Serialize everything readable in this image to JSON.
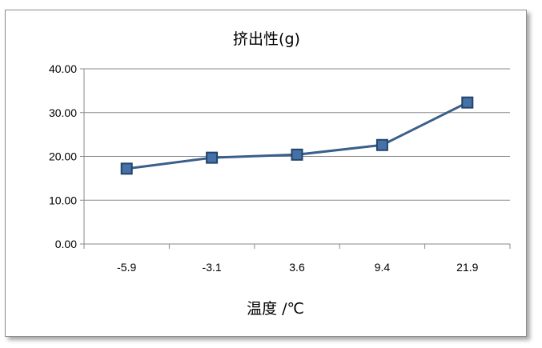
{
  "chart_data": {
    "type": "line",
    "title": "挤出性(g)",
    "xlabel": "温度 /℃",
    "ylabel": "",
    "categories": [
      "-5.9",
      "-3.1",
      "3.6",
      "9.4",
      "21.9"
    ],
    "series": [
      {
        "values": [
          17.2,
          19.7,
          20.4,
          22.6,
          32.3
        ],
        "color": "#4472a8",
        "line_color": "#3a5f8a",
        "marker": "square"
      }
    ],
    "ylim": [
      0,
      40
    ],
    "yticks": [
      "0.00",
      "10.00",
      "20.00",
      "30.00",
      "40.00"
    ],
    "grid": true,
    "legend": "none"
  }
}
